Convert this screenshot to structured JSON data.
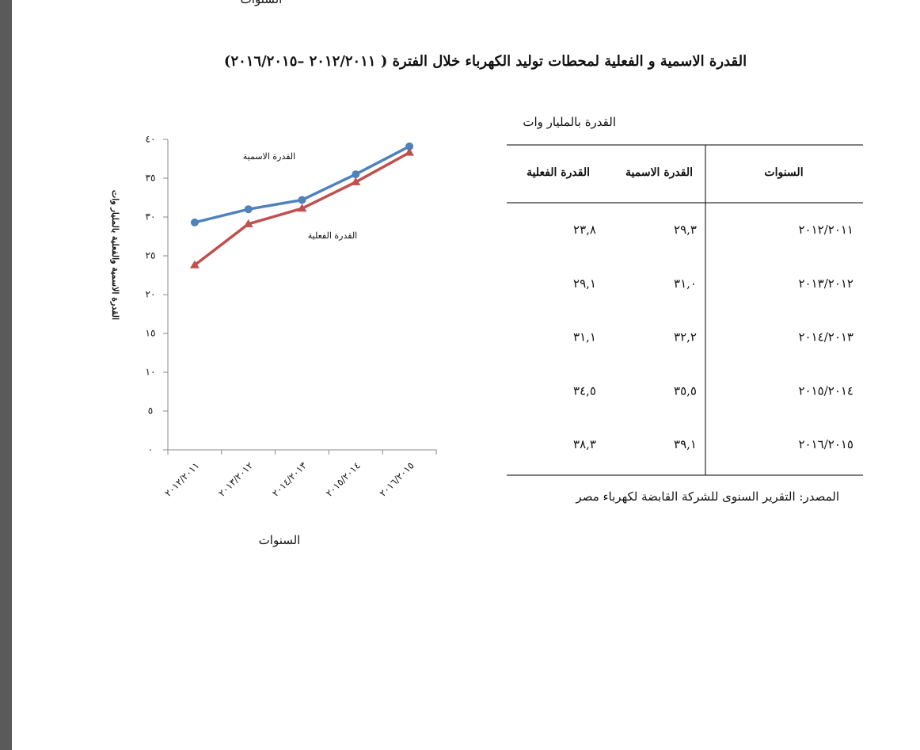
{
  "page_top_fragment": "السنوات",
  "title": "القدرة الاسمية و الفعلية لمحطات توليد الكهرباء خلال الفترة ( ٢٠١٢/٢٠١١ –٢٠١٦/٢٠١٥)",
  "chart_data": {
    "type": "line",
    "y_label": "القدرة الاسمية والفعلية بالمليار وات",
    "x_label": "السنوات",
    "categories": [
      "٢٠١٢/٢٠١١",
      "٢٠١٣/٢٠١٢",
      "٢٠١٤/٢٠١٣",
      "٢٠١٥/٢٠١٤",
      "٢٠١٦/٢٠١٥"
    ],
    "series": [
      {
        "name": "القدرة الاسمية",
        "color": "#4f81bd",
        "marker": "circle",
        "values": [
          29.3,
          31.0,
          32.2,
          35.5,
          39.1
        ]
      },
      {
        "name": "القدرة الفعلية",
        "color": "#c0504d",
        "marker": "triangle",
        "values": [
          23.8,
          29.1,
          31.1,
          34.5,
          38.3
        ]
      }
    ],
    "ylim": [
      0,
      40
    ],
    "yticks": [
      {
        "value": 0,
        "label": "٠"
      },
      {
        "value": 5,
        "label": "٥"
      },
      {
        "value": 10,
        "label": "١٠"
      },
      {
        "value": 15,
        "label": "١٥"
      },
      {
        "value": 20,
        "label": "٢٠"
      },
      {
        "value": 25,
        "label": "٢٥"
      },
      {
        "value": 30,
        "label": "٣٠"
      },
      {
        "value": 35,
        "label": "٣٥"
      },
      {
        "value": 40,
        "label": "٤٠"
      }
    ],
    "grid": false
  },
  "table": {
    "unit": "القدرة بالمليار وات",
    "header": [
      "السنوات",
      "القدرة الاسمية",
      "القدرة الفعلية"
    ],
    "rows": [
      [
        "٢٠١٢/٢٠١١",
        "٢٩,٣",
        "٢٣,٨"
      ],
      [
        "٢٠١٣/٢٠١٢",
        "٣١,٠",
        "٢٩,١"
      ],
      [
        "٢٠١٤/٢٠١٣",
        "٣٢,٢",
        "٣١,١"
      ],
      [
        "٢٠١٥/٢٠١٤",
        "٣٥,٥",
        "٣٤,٥"
      ],
      [
        "٢٠١٦/٢٠١٥",
        "٣٩,١",
        "٣٨,٣"
      ]
    ],
    "source": "المصدر: التقرير السنوى للشركة القابضة لكهرباء مصر"
  }
}
